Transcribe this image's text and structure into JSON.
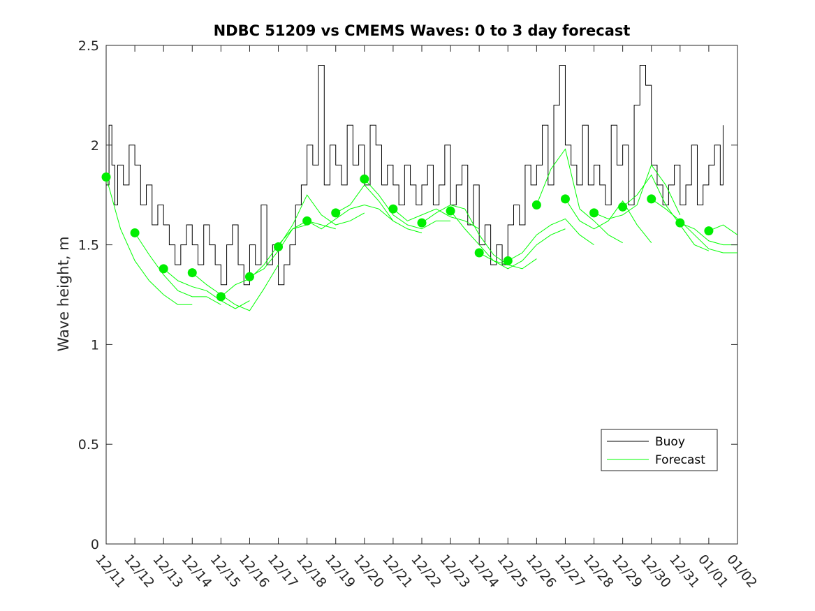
{
  "chart_data": {
    "type": "line",
    "title": "NDBC 51209 vs CMEMS Waves: 0 to 3 day forecast",
    "xlabel": "",
    "ylabel": "Wave height, m",
    "ylim": [
      0,
      2.5
    ],
    "xlim": [
      0,
      22
    ],
    "yticks": [
      0,
      0.5,
      1,
      1.5,
      2,
      2.5
    ],
    "ytick_labels": [
      "0",
      "0.5",
      "1",
      "1.5",
      "2",
      "2.5"
    ],
    "xtick_labels": [
      "12/11",
      "12/12",
      "12/13",
      "12/14",
      "12/15",
      "12/16",
      "12/17",
      "12/18",
      "12/19",
      "12/20",
      "12/21",
      "12/22",
      "12/23",
      "12/24",
      "12/25",
      "12/26",
      "12/27",
      "12/28",
      "12/29",
      "12/30",
      "12/31",
      "01/01",
      "01/02"
    ],
    "legend": {
      "placement": "lower-right",
      "entries": [
        {
          "label": "Buoy",
          "color": "#000000"
        },
        {
          "label": "Forecast",
          "color": "#00ff00"
        }
      ]
    },
    "colors": {
      "buoy": "#000000",
      "forecast": "#00ff00",
      "marker": "#00ee00"
    },
    "series": [
      {
        "name": "Buoy",
        "x": [
          0,
          0.1,
          0.2,
          0.3,
          0.4,
          0.6,
          0.8,
          1.0,
          1.2,
          1.4,
          1.6,
          1.8,
          2.0,
          2.2,
          2.4,
          2.6,
          2.8,
          3.0,
          3.2,
          3.4,
          3.6,
          3.8,
          4.0,
          4.2,
          4.4,
          4.6,
          4.8,
          5.0,
          5.2,
          5.4,
          5.6,
          5.8,
          6.0,
          6.2,
          6.4,
          6.6,
          6.8,
          7.0,
          7.2,
          7.4,
          7.6,
          7.8,
          8.0,
          8.2,
          8.4,
          8.6,
          8.8,
          9.0,
          9.2,
          9.4,
          9.6,
          9.8,
          10.0,
          10.2,
          10.4,
          10.6,
          10.8,
          11.0,
          11.2,
          11.4,
          11.6,
          11.8,
          12.0,
          12.2,
          12.4,
          12.6,
          12.8,
          13.0,
          13.2,
          13.4,
          13.6,
          13.8,
          14.0,
          14.2,
          14.4,
          14.6,
          14.8,
          15.0,
          15.2,
          15.4,
          15.6,
          15.8,
          16.0,
          16.2,
          16.4,
          16.6,
          16.8,
          17.0,
          17.2,
          17.4,
          17.6,
          17.8,
          18.0,
          18.2,
          18.4,
          18.6,
          18.8,
          19.0,
          19.2,
          19.4,
          19.6,
          19.8,
          20.0,
          20.2,
          20.4,
          20.6,
          20.8,
          21.0,
          21.2,
          21.4,
          21.5
        ],
        "values": [
          1.8,
          2.1,
          1.9,
          1.7,
          1.9,
          1.8,
          2.0,
          1.9,
          1.7,
          1.8,
          1.6,
          1.7,
          1.6,
          1.5,
          1.4,
          1.5,
          1.6,
          1.5,
          1.4,
          1.6,
          1.5,
          1.4,
          1.3,
          1.5,
          1.6,
          1.4,
          1.3,
          1.5,
          1.4,
          1.7,
          1.4,
          1.5,
          1.3,
          1.4,
          1.5,
          1.7,
          1.8,
          2.0,
          1.9,
          2.4,
          1.8,
          2.0,
          1.9,
          1.8,
          2.1,
          1.9,
          2.0,
          1.8,
          2.1,
          2.0,
          1.8,
          1.9,
          1.8,
          1.7,
          1.9,
          1.8,
          1.7,
          1.8,
          1.9,
          1.7,
          1.8,
          2.0,
          1.7,
          1.8,
          1.9,
          1.6,
          1.8,
          1.5,
          1.6,
          1.4,
          1.5,
          1.4,
          1.6,
          1.7,
          1.6,
          1.9,
          1.8,
          1.9,
          2.1,
          1.8,
          2.2,
          2.4,
          2.0,
          1.9,
          1.8,
          2.1,
          1.8,
          1.9,
          1.8,
          1.7,
          2.1,
          1.9,
          2.0,
          1.7,
          2.2,
          2.4,
          2.3,
          1.9,
          1.8,
          1.7,
          1.8,
          1.9,
          1.7,
          1.8,
          2.0,
          1.7,
          1.8,
          1.9,
          2.0,
          1.8,
          2.1
        ]
      },
      {
        "name": "Forecast run 1",
        "x": [
          0,
          0.5,
          1.0,
          1.5,
          2.0,
          2.5,
          3.0
        ],
        "values": [
          1.84,
          1.58,
          1.42,
          1.32,
          1.25,
          1.2,
          1.2
        ]
      },
      {
        "name": "Forecast run 2",
        "x": [
          1,
          1.5,
          2.0,
          2.5,
          3.0,
          3.5,
          4.0
        ],
        "values": [
          1.56,
          1.45,
          1.35,
          1.27,
          1.24,
          1.24,
          1.2
        ]
      },
      {
        "name": "Forecast run 3",
        "x": [
          2,
          2.5,
          3.0,
          3.5,
          4.0,
          4.5,
          5.0
        ],
        "values": [
          1.38,
          1.32,
          1.29,
          1.27,
          1.22,
          1.18,
          1.22
        ]
      },
      {
        "name": "Forecast run 4",
        "x": [
          3,
          3.5,
          4.0,
          4.5,
          5.0,
          5.5,
          6.0
        ],
        "values": [
          1.36,
          1.3,
          1.25,
          1.2,
          1.17,
          1.28,
          1.4
        ]
      },
      {
        "name": "Forecast run 5",
        "x": [
          4,
          4.5,
          5.0,
          5.5,
          6.0,
          6.5,
          7.0
        ],
        "values": [
          1.24,
          1.3,
          1.33,
          1.4,
          1.5,
          1.58,
          1.6
        ]
      },
      {
        "name": "Forecast run 6",
        "x": [
          5,
          5.5,
          6.0,
          6.5,
          7.0,
          7.5,
          8.0
        ],
        "values": [
          1.34,
          1.38,
          1.47,
          1.58,
          1.62,
          1.6,
          1.58
        ]
      },
      {
        "name": "Forecast run 7",
        "x": [
          6,
          6.5,
          7.0,
          7.5,
          8.0,
          8.5,
          9.0
        ],
        "values": [
          1.49,
          1.6,
          1.75,
          1.65,
          1.6,
          1.62,
          1.66
        ]
      },
      {
        "name": "Forecast run 8",
        "x": [
          7,
          7.5,
          8.0,
          8.5,
          9.0,
          9.5,
          10.0
        ],
        "values": [
          1.62,
          1.58,
          1.63,
          1.68,
          1.7,
          1.68,
          1.62
        ]
      },
      {
        "name": "Forecast run 9",
        "x": [
          8,
          8.5,
          9.0,
          9.5,
          10.0,
          10.5,
          11.0
        ],
        "values": [
          1.66,
          1.7,
          1.8,
          1.72,
          1.62,
          1.58,
          1.56
        ]
      },
      {
        "name": "Forecast run 10",
        "x": [
          9,
          9.5,
          10.0,
          10.5,
          11.0,
          11.5,
          12.0
        ],
        "values": [
          1.83,
          1.75,
          1.65,
          1.6,
          1.58,
          1.62,
          1.62
        ]
      },
      {
        "name": "Forecast run 11",
        "x": [
          10,
          10.5,
          11.0,
          11.5,
          12.0,
          12.5,
          13.0
        ],
        "values": [
          1.68,
          1.62,
          1.65,
          1.68,
          1.64,
          1.62,
          1.58
        ]
      },
      {
        "name": "Forecast run 12",
        "x": [
          11,
          11.5,
          12.0,
          12.5,
          13.0,
          13.5,
          14.0
        ],
        "values": [
          1.61,
          1.66,
          1.7,
          1.68,
          1.55,
          1.45,
          1.4
        ]
      },
      {
        "name": "Forecast run 13",
        "x": [
          12,
          12.5,
          13.0,
          13.5,
          14.0,
          14.5,
          15.0
        ],
        "values": [
          1.67,
          1.58,
          1.5,
          1.42,
          1.4,
          1.38,
          1.43
        ]
      },
      {
        "name": "Forecast run 14",
        "x": [
          13,
          13.5,
          14.0,
          14.5,
          15.0,
          15.5,
          16.0
        ],
        "values": [
          1.46,
          1.42,
          1.38,
          1.42,
          1.5,
          1.55,
          1.58
        ]
      },
      {
        "name": "Forecast run 15",
        "x": [
          14,
          14.5,
          15.0,
          15.5,
          16.0,
          16.5,
          17.0
        ],
        "values": [
          1.42,
          1.46,
          1.55,
          1.6,
          1.63,
          1.55,
          1.5
        ]
      },
      {
        "name": "Forecast run 16",
        "x": [
          15,
          15.5,
          16.0,
          16.5,
          17.0,
          17.5,
          18.0
        ],
        "values": [
          1.7,
          1.88,
          1.98,
          1.68,
          1.62,
          1.55,
          1.51
        ]
      },
      {
        "name": "Forecast run 17",
        "x": [
          16,
          16.5,
          17.0,
          17.5,
          18.0,
          18.5,
          19.0
        ],
        "values": [
          1.73,
          1.62,
          1.58,
          1.62,
          1.72,
          1.6,
          1.51
        ]
      },
      {
        "name": "Forecast run 18",
        "x": [
          17,
          17.5,
          18.0,
          18.5,
          19.0,
          19.5,
          20.0
        ],
        "values": [
          1.66,
          1.63,
          1.65,
          1.7,
          1.9,
          1.8,
          1.65
        ]
      },
      {
        "name": "Forecast run 19",
        "x": [
          18,
          18.5,
          19.0,
          19.5,
          20.0,
          20.5,
          21.0
        ],
        "values": [
          1.69,
          1.75,
          1.85,
          1.7,
          1.6,
          1.5,
          1.47
        ]
      },
      {
        "name": "Forecast run 20",
        "x": [
          19,
          19.5,
          20.0,
          20.5,
          21.0,
          21.5,
          22.0
        ],
        "values": [
          1.73,
          1.68,
          1.62,
          1.55,
          1.48,
          1.46,
          1.46
        ]
      },
      {
        "name": "Forecast run 21",
        "x": [
          20,
          20.5,
          21.0,
          21.5,
          22.0
        ],
        "values": [
          1.61,
          1.58,
          1.52,
          1.5,
          1.5
        ]
      },
      {
        "name": "Forecast run 22",
        "x": [
          21,
          21.5,
          22.0
        ],
        "values": [
          1.57,
          1.6,
          1.55
        ]
      }
    ],
    "markers": {
      "name": "Forecast day-0 values",
      "x": [
        0,
        1,
        2,
        3,
        4,
        5,
        6,
        7,
        8,
        9,
        10,
        11,
        12,
        13,
        14,
        15,
        16,
        17,
        18,
        19,
        20,
        21
      ],
      "values": [
        1.84,
        1.56,
        1.38,
        1.36,
        1.24,
        1.34,
        1.49,
        1.62,
        1.66,
        1.83,
        1.68,
        1.61,
        1.67,
        1.46,
        1.42,
        1.7,
        1.73,
        1.66,
        1.69,
        1.73,
        1.61,
        1.57
      ]
    }
  }
}
